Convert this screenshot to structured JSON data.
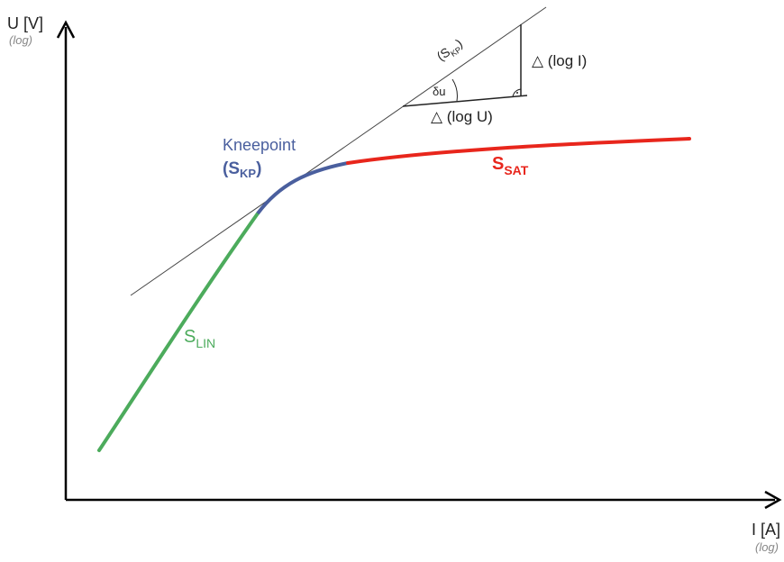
{
  "axes": {
    "y_label": "U [V]",
    "y_scale": "(log)",
    "x_label": "I [A]",
    "x_scale": "(log)"
  },
  "regions": {
    "lin": {
      "main": "S",
      "sub": "LIN",
      "color": "#4cab5c"
    },
    "kp": {
      "line1": "Kneepoint",
      "open": "(S",
      "sub": "KP",
      "close": ")",
      "color": "#4a5f9e"
    },
    "sat": {
      "main": "S",
      "sub": "SAT",
      "color": "#e8261c"
    }
  },
  "tangent": {
    "label_open": "(S",
    "label_sub": "KP",
    "label_close": ")",
    "angle_label": "δu",
    "delta_i": "△ (log I)",
    "delta_u": "△ (log U)"
  },
  "colors": {
    "axis": "#000000",
    "tangent": "#444444",
    "triangle": "#222222",
    "text": "#222222",
    "muted": "#888888"
  }
}
